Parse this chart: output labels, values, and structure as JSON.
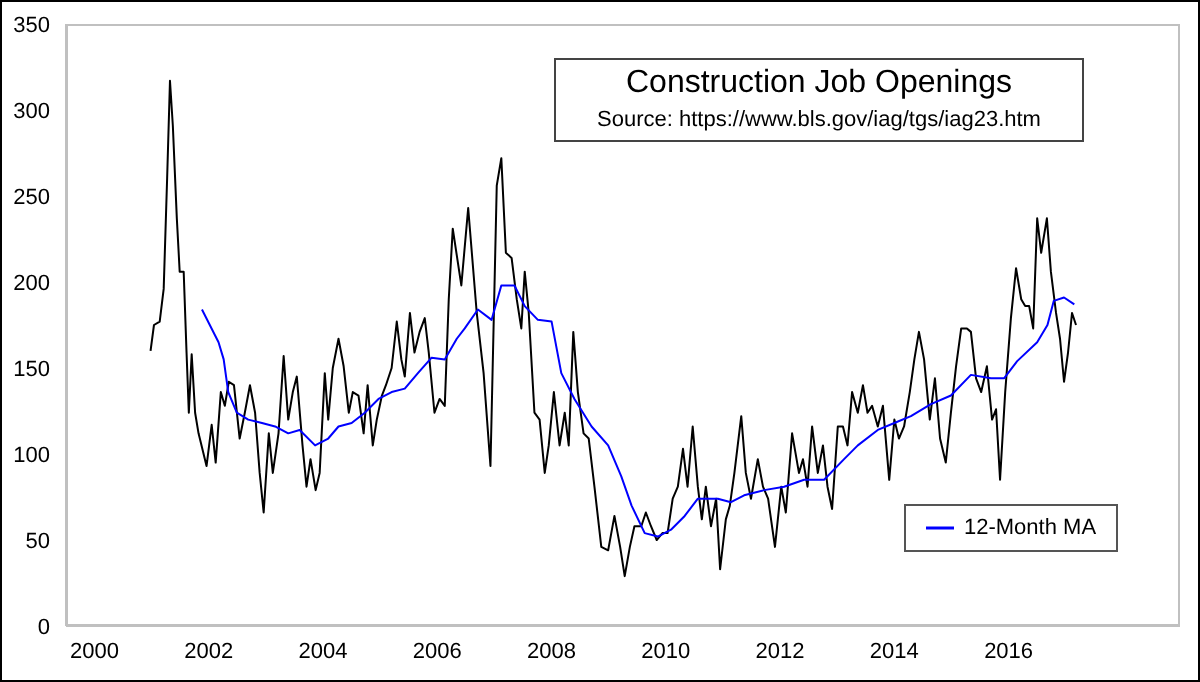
{
  "chart_data": {
    "type": "line",
    "title": "Construction Job Openings",
    "annotations": [
      "Source: https://www.bls.gov/iag/tgs/iag23.htm"
    ],
    "xlim": [
      1999.5,
      2019
    ],
    "xticks": [
      2000,
      2002,
      2004,
      2006,
      2008,
      2010,
      2012,
      2014,
      2016
    ],
    "ylim": [
      0,
      350
    ],
    "yticks": [
      0,
      50,
      100,
      150,
      200,
      250,
      300,
      350
    ],
    "legend": "bottom right",
    "marker": "none",
    "line_style": "solid",
    "series": [
      {
        "color": "#000000",
        "x": [
          2000.98,
          2001.04,
          2001.14,
          2001.21,
          2001.27,
          2001.32,
          2001.37,
          2001.44,
          2001.49,
          2001.56,
          2001.61,
          2001.65,
          2001.7,
          2001.76,
          2001.82,
          2001.96,
          2002.05,
          2002.12,
          2002.21,
          2002.28,
          2002.35,
          2002.44,
          2002.54,
          2002.63,
          2002.72,
          2002.81,
          2002.89,
          2002.96,
          2003.05,
          2003.12,
          2003.22,
          2003.31,
          2003.39,
          2003.47,
          2003.54,
          2003.64,
          2003.71,
          2003.78,
          2003.87,
          2003.94,
          2004.03,
          2004.09,
          2004.17,
          2004.27,
          2004.36,
          2004.45,
          2004.52,
          2004.62,
          2004.71,
          2004.78,
          2004.87,
          2004.94,
          2005.03,
          2005.1,
          2005.2,
          2005.29,
          2005.37,
          2005.43,
          2005.52,
          2005.6,
          2005.69,
          2005.78,
          2005.85,
          2005.95,
          2006.04,
          2006.13,
          2006.2,
          2006.27,
          2006.42,
          2006.54,
          2006.69,
          2006.81,
          2006.93,
          2007.04,
          2007.12,
          2007.2,
          2007.3,
          2007.39,
          2007.47,
          2007.53,
          2007.6,
          2007.7,
          2007.79,
          2007.88,
          2007.95,
          2008.04,
          2008.14,
          2008.23,
          2008.3,
          2008.38,
          2008.46,
          2008.56,
          2008.65,
          2008.75,
          2008.87,
          2008.99,
          2009.1,
          2009.2,
          2009.28,
          2009.37,
          2009.45,
          2009.57,
          2009.65,
          2009.74,
          2009.84,
          2009.94,
          2010.03,
          2010.12,
          2010.21,
          2010.3,
          2010.38,
          2010.47,
          2010.56,
          2010.63,
          2010.7,
          2010.79,
          2010.88,
          2010.95,
          2011.05,
          2011.12,
          2011.2,
          2011.32,
          2011.4,
          2011.49,
          2011.61,
          2011.7,
          2011.79,
          2011.91,
          2012.02,
          2012.1,
          2012.21,
          2012.33,
          2012.4,
          2012.48,
          2012.56,
          2012.66,
          2012.75,
          2012.83,
          2012.91,
          2013.01,
          2013.1,
          2013.18,
          2013.26,
          2013.36,
          2013.45,
          2013.53,
          2013.61,
          2013.71,
          2013.8,
          2013.91,
          2014.0,
          2014.08,
          2014.17,
          2014.27,
          2014.35,
          2014.43,
          2014.52,
          2014.62,
          2014.71,
          2014.8,
          2014.9,
          2014.99,
          2015.08,
          2015.17,
          2015.27,
          2015.34,
          2015.43,
          2015.52,
          2015.62,
          2015.71,
          2015.78,
          2015.85,
          2015.94,
          2016.04,
          2016.13,
          2016.22,
          2016.29,
          2016.36,
          2016.43,
          2016.5,
          2016.57,
          2016.67,
          2016.74,
          2016.83,
          2016.9,
          2016.97,
          2017.04,
          2017.11,
          2017.18
        ],
        "values": [
          160,
          175,
          177,
          196,
          260,
          317,
          291,
          237,
          206,
          206,
          159,
          124,
          158,
          124,
          112,
          93,
          117,
          95,
          136,
          128,
          142,
          140,
          109,
          124,
          140,
          124,
          89,
          66,
          112,
          89,
          112,
          157,
          120,
          136,
          145,
          105,
          81,
          97,
          79,
          89,
          147,
          120,
          150,
          167,
          151,
          124,
          136,
          134,
          112,
          140,
          105,
          120,
          134,
          140,
          150,
          177,
          155,
          145,
          182,
          159,
          171,
          179,
          159,
          124,
          132,
          128,
          190,
          231,
          198,
          243,
          182,
          147,
          93,
          256,
          272,
          217,
          214,
          190,
          173,
          206,
          182,
          124,
          120,
          89,
          105,
          136,
          105,
          124,
          105,
          171,
          136,
          112,
          109,
          81,
          46,
          44,
          64,
          46,
          29,
          46,
          58,
          58,
          66,
          58,
          50,
          54,
          54,
          74,
          81,
          103,
          81,
          116,
          81,
          62,
          81,
          58,
          74,
          33,
          62,
          70,
          89,
          122,
          89,
          74,
          97,
          81,
          74,
          46,
          81,
          66,
          112,
          89,
          97,
          81,
          116,
          89,
          105,
          81,
          68,
          116,
          116,
          105,
          136,
          124,
          140,
          124,
          128,
          116,
          128,
          85,
          120,
          109,
          116,
          136,
          155,
          171,
          155,
          120,
          144,
          109,
          95,
          124,
          151,
          173,
          173,
          171,
          144,
          136,
          151,
          120,
          126,
          85,
          136,
          179,
          208,
          190,
          186,
          186,
          173,
          237,
          217,
          237,
          206,
          182,
          167,
          142,
          159,
          182,
          175
        ]
      },
      {
        "name": "12-Month MA",
        "color": "#0000ff",
        "x": [
          2001.88,
          2002.17,
          2002.26,
          2002.34,
          2002.49,
          2002.69,
          2002.93,
          2003.16,
          2003.39,
          2003.59,
          2003.86,
          2004.09,
          2004.27,
          2004.5,
          2004.73,
          2004.97,
          2005.2,
          2005.43,
          2005.66,
          2005.9,
          2006.13,
          2006.34,
          2006.48,
          2006.71,
          2006.95,
          2007.12,
          2007.35,
          2007.53,
          2007.76,
          2008.0,
          2008.17,
          2008.4,
          2008.7,
          2008.99,
          2009.22,
          2009.4,
          2009.63,
          2009.86,
          2010.09,
          2010.33,
          2010.56,
          2010.91,
          2011.14,
          2011.37,
          2011.72,
          2012.07,
          2012.42,
          2012.77,
          2013.12,
          2013.36,
          2013.71,
          2014.0,
          2014.29,
          2014.64,
          2014.99,
          2015.34,
          2015.69,
          2015.92,
          2016.15,
          2016.5,
          2016.68,
          2016.79,
          2016.97,
          2017.15
        ],
        "values": [
          184,
          165,
          155,
          136,
          124,
          120,
          118,
          116,
          112,
          114,
          105,
          109,
          116,
          118,
          124,
          132,
          136,
          138,
          147,
          156,
          155,
          167,
          173,
          184,
          178,
          198,
          198,
          186,
          178,
          177,
          147,
          132,
          116,
          105,
          87,
          70,
          54,
          52,
          56,
          64,
          74,
          74,
          72,
          76,
          79,
          81,
          85,
          85,
          97,
          105,
          114,
          118,
          122,
          129,
          134,
          146,
          144,
          144,
          154,
          165,
          175,
          189,
          191,
          187
        ]
      }
    ]
  }
}
